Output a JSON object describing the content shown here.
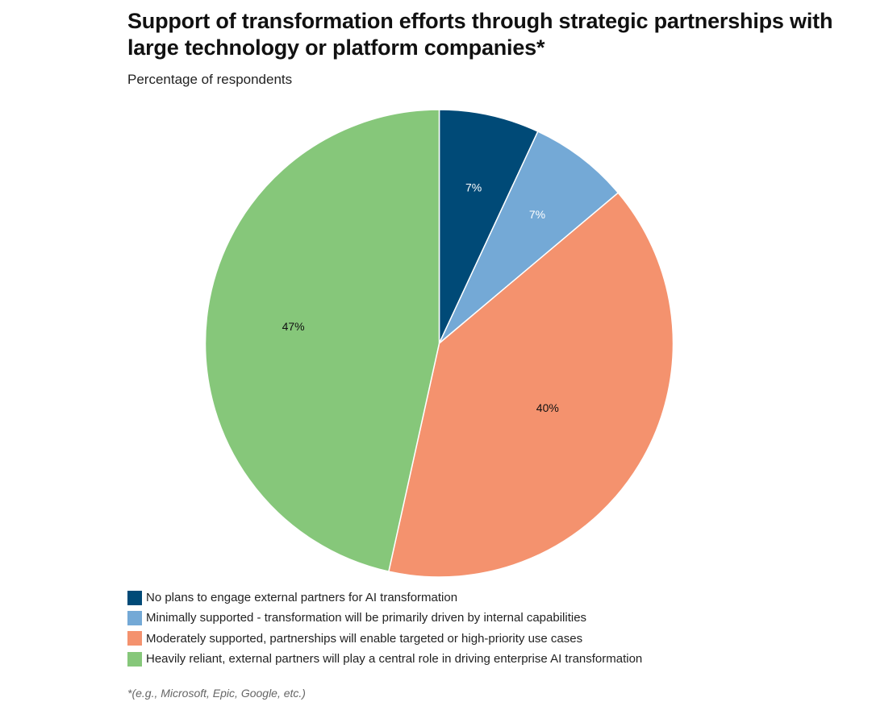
{
  "chart_data": {
    "type": "pie",
    "title": "Support of transformation efforts through strategic partnerships with large technology or platform companies*",
    "subtitle": "Percentage of respondents",
    "unit": "%",
    "start_angle": "12 o'clock",
    "direction": "clockwise",
    "slices": [
      {
        "label": "No plans to engage external partners for AI transformation",
        "value": 7,
        "value_label": "7%",
        "color": "#004A77",
        "label_color": "#ffffff"
      },
      {
        "label": "Minimally supported - transformation will be primarily driven by internal capabilities",
        "value": 7,
        "value_label": "7%",
        "color": "#74A9D6",
        "label_color": "#ffffff"
      },
      {
        "label": "Moderately supported, partnerships will enable targeted or high-priority use cases",
        "value": 40,
        "value_label": "40%",
        "color": "#F4926E",
        "label_color": "#111111"
      },
      {
        "label": "Heavily reliant, external partners will play a central role in driving enterprise AI transformation",
        "value": 47,
        "value_label": "47%",
        "color": "#86C77A",
        "label_color": "#111111"
      }
    ],
    "legend_position": "bottom-left",
    "footnote": "*(e.g., Microsoft, Epic, Google, etc.)"
  }
}
